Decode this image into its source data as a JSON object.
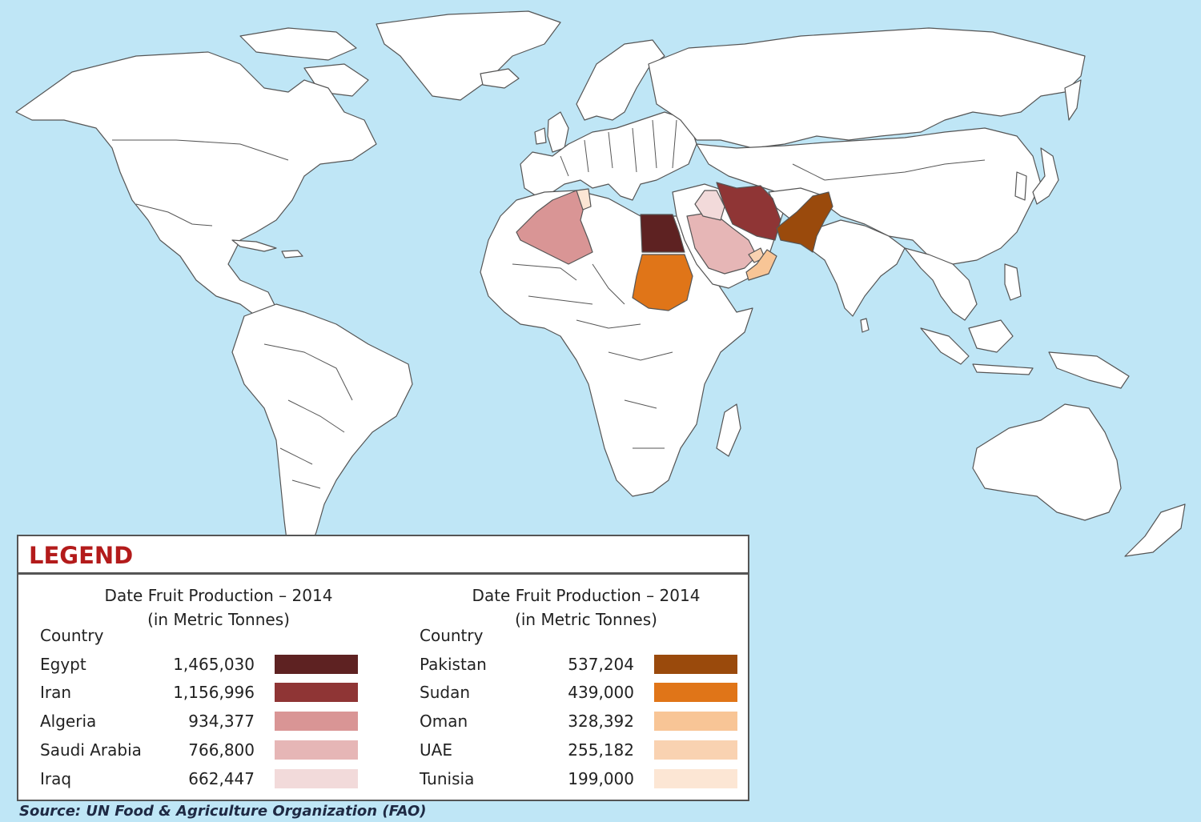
{
  "colors": {
    "ocean": "#bfe6f6",
    "land": "#ffffff",
    "legend_title": "#b31b1b"
  },
  "legend": {
    "title": "LEGEND",
    "left": {
      "heading": "Date Fruit Production – 2014",
      "subheading": "(in Metric Tonnes)",
      "column_label": "Country",
      "rows": [
        {
          "country": "Egypt",
          "value": "1,465,030",
          "color": "#5e2222"
        },
        {
          "country": "Iran",
          "value": "1,156,996",
          "color": "#8f3535"
        },
        {
          "country": "Algeria",
          "value": "934,377",
          "color": "#d99595"
        },
        {
          "country": "Saudi Arabia",
          "value": "766,800",
          "color": "#e6b6b6"
        },
        {
          "country": "Iraq",
          "value": "662,447",
          "color": "#f2dada"
        }
      ]
    },
    "right": {
      "heading": "Date Fruit Production – 2014",
      "subheading": "(in Metric Tonnes)",
      "column_label": "Country",
      "rows": [
        {
          "country": "Pakistan",
          "value": "537,204",
          "color": "#9a4a0c"
        },
        {
          "country": "Sudan",
          "value": "439,000",
          "color": "#e07518"
        },
        {
          "country": "Oman",
          "value": "328,392",
          "color": "#f8c596"
        },
        {
          "country": "UAE",
          "value": "255,182",
          "color": "#f9d2b1"
        },
        {
          "country": "Tunisia",
          "value": "199,000",
          "color": "#fce6d4"
        }
      ]
    }
  },
  "source": "Source: UN Food & Agriculture Organization (FAO)"
}
